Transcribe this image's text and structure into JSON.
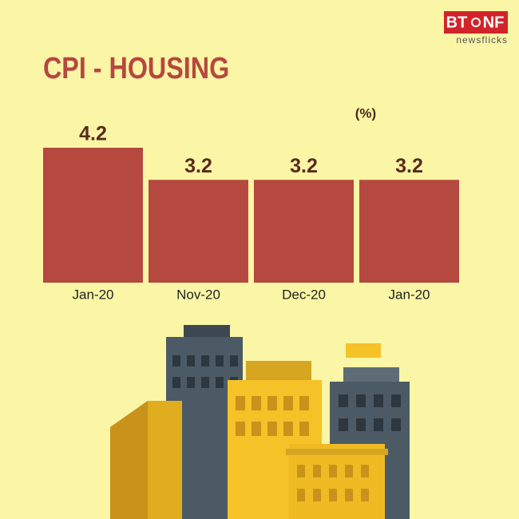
{
  "chart_data": {
    "type": "bar",
    "title": "CPI - HOUSING",
    "unit_label": "(%)",
    "categories": [
      "Jan-20",
      "Nov-20",
      "Dec-20",
      "Jan-20"
    ],
    "values": [
      4.2,
      3.2,
      3.2,
      3.2
    ],
    "color": "#b5483f"
  },
  "logo": {
    "left": "BT",
    "right": "NF",
    "tagline": "newsflicks"
  }
}
